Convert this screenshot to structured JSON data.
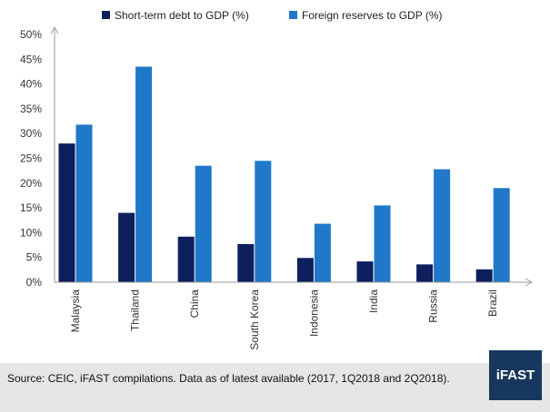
{
  "chart_data": {
    "type": "bar",
    "categories": [
      "Malaysia",
      "Thailand",
      "China",
      "South Korea",
      "Indonesia",
      "India",
      "Russia",
      "Brazil"
    ],
    "series": [
      {
        "name": "Short-term debt to GDP (%)",
        "color": "#0d1f5c",
        "values": [
          28,
          14,
          9.2,
          7.7,
          4.9,
          4.2,
          3.6,
          2.6
        ]
      },
      {
        "name": "Foreign reserves to GDP (%)",
        "color": "#1f78c8",
        "values": [
          31.8,
          43.5,
          23.5,
          24.5,
          11.8,
          15.5,
          22.8,
          19
        ]
      }
    ],
    "yticks": [
      "0%",
      "5%",
      "10%",
      "15%",
      "20%",
      "25%",
      "30%",
      "35%",
      "40%",
      "45%",
      "50%"
    ],
    "ylim": [
      0,
      50
    ],
    "legend_position": "top",
    "grid": false
  },
  "footer": {
    "source": "Source: CEIC, iFAST compilations. Data as of latest available (2017, 1Q2018  and 2Q2018).",
    "logo_text": "iFAST",
    "logo_color": "#17375e"
  }
}
